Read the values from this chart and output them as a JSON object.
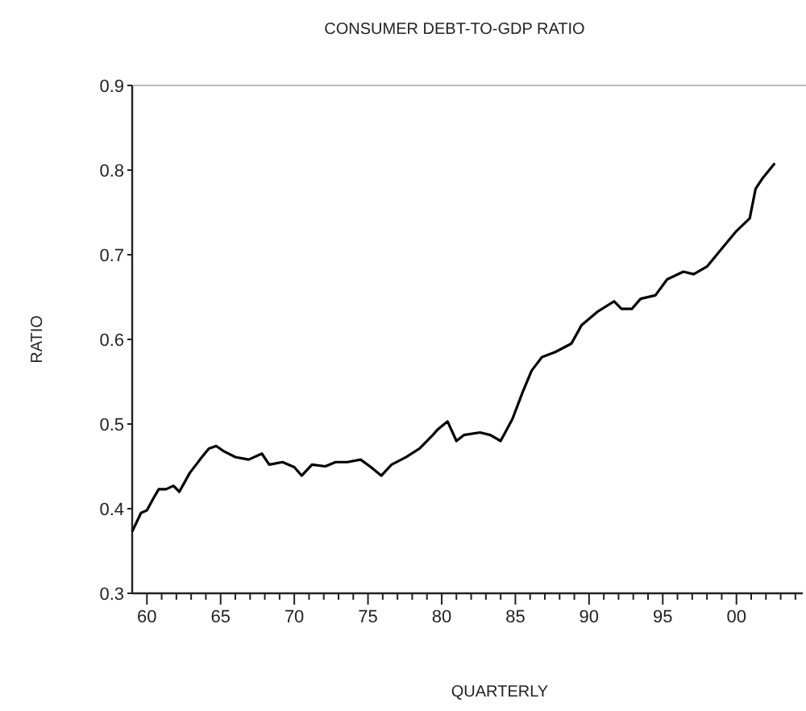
{
  "chart_data": {
    "type": "line",
    "title": "CONSUMER DEBT-TO-GDP RATIO",
    "xlabel": "QUARTERLY",
    "ylabel": "RATIO",
    "xlim": [
      1959,
      2004.5
    ],
    "ylim": [
      0.3,
      0.9
    ],
    "yticks": [
      0.3,
      0.4,
      0.5,
      0.6,
      0.7,
      0.8,
      0.9
    ],
    "xticks": [
      {
        "value": 1960,
        "label": "60"
      },
      {
        "value": 1961,
        "label": null
      },
      {
        "value": 1962,
        "label": null
      },
      {
        "value": 1963,
        "label": null
      },
      {
        "value": 1964,
        "label": null
      },
      {
        "value": 1965,
        "label": "65"
      },
      {
        "value": 1966,
        "label": null
      },
      {
        "value": 1967,
        "label": null
      },
      {
        "value": 1968,
        "label": null
      },
      {
        "value": 1969,
        "label": null
      },
      {
        "value": 1970,
        "label": "70"
      },
      {
        "value": 1971,
        "label": null
      },
      {
        "value": 1972,
        "label": null
      },
      {
        "value": 1973,
        "label": null
      },
      {
        "value": 1974,
        "label": null
      },
      {
        "value": 1975,
        "label": "75"
      },
      {
        "value": 1976,
        "label": null
      },
      {
        "value": 1977,
        "label": null
      },
      {
        "value": 1978,
        "label": null
      },
      {
        "value": 1979,
        "label": null
      },
      {
        "value": 1980,
        "label": "80"
      },
      {
        "value": 1981,
        "label": null
      },
      {
        "value": 1982,
        "label": null
      },
      {
        "value": 1983,
        "label": null
      },
      {
        "value": 1984,
        "label": null
      },
      {
        "value": 1985,
        "label": "85"
      },
      {
        "value": 1986,
        "label": null
      },
      {
        "value": 1987,
        "label": null
      },
      {
        "value": 1988,
        "label": null
      },
      {
        "value": 1989,
        "label": null
      },
      {
        "value": 1990,
        "label": "90"
      },
      {
        "value": 1991,
        "label": null
      },
      {
        "value": 1992,
        "label": null
      },
      {
        "value": 1993,
        "label": null
      },
      {
        "value": 1994,
        "label": null
      },
      {
        "value": 1995,
        "label": "95"
      },
      {
        "value": 1996,
        "label": null
      },
      {
        "value": 1997,
        "label": null
      },
      {
        "value": 1998,
        "label": null
      },
      {
        "value": 1999,
        "label": null
      },
      {
        "value": 2000,
        "label": "00"
      },
      {
        "value": 2001,
        "label": null
      },
      {
        "value": 2002,
        "label": null
      },
      {
        "value": 2003,
        "label": null
      },
      {
        "value": 2004,
        "label": null
      }
    ],
    "series": [
      {
        "color": "#000000",
        "x": [
          1959,
          1959.6,
          1960,
          1960.4,
          1960.8,
          1961.3,
          1961.8,
          1962.2,
          1962.9,
          1963.6,
          1964.2,
          1964.7,
          1965.2,
          1966,
          1966.9,
          1967.8,
          1968.3,
          1969.2,
          1970,
          1970.5,
          1971.2,
          1972.1,
          1972.8,
          1973.6,
          1974.5,
          1975.2,
          1975.9,
          1976.6,
          1977.6,
          1978.5,
          1979.4,
          1979.7,
          1980.4,
          1981,
          1981.5,
          1982.6,
          1983.3,
          1984,
          1984.8,
          1985.5,
          1986.1,
          1986.8,
          1987.7,
          1988.8,
          1989.5,
          1990.6,
          1991.7,
          1992.2,
          1992.9,
          1993.5,
          1994.5,
          1995.3,
          1996.4,
          1997.1,
          1998,
          1998.9,
          2000,
          2000.9,
          2001.3,
          2001.8,
          2002.6
        ],
        "values": [
          0.373,
          0.395,
          0.398,
          0.411,
          0.423,
          0.423,
          0.427,
          0.42,
          0.442,
          0.458,
          0.471,
          0.474,
          0.468,
          0.461,
          0.458,
          0.465,
          0.452,
          0.455,
          0.449,
          0.439,
          0.452,
          0.45,
          0.455,
          0.455,
          0.458,
          0.449,
          0.439,
          0.452,
          0.461,
          0.471,
          0.487,
          0.493,
          0.503,
          0.48,
          0.487,
          0.49,
          0.487,
          0.48,
          0.506,
          0.538,
          0.563,
          0.579,
          0.585,
          0.595,
          0.617,
          0.633,
          0.645,
          0.636,
          0.636,
          0.648,
          0.652,
          0.671,
          0.68,
          0.677,
          0.686,
          0.705,
          0.728,
          0.743,
          0.778,
          0.791,
          0.808
        ]
      }
    ]
  }
}
